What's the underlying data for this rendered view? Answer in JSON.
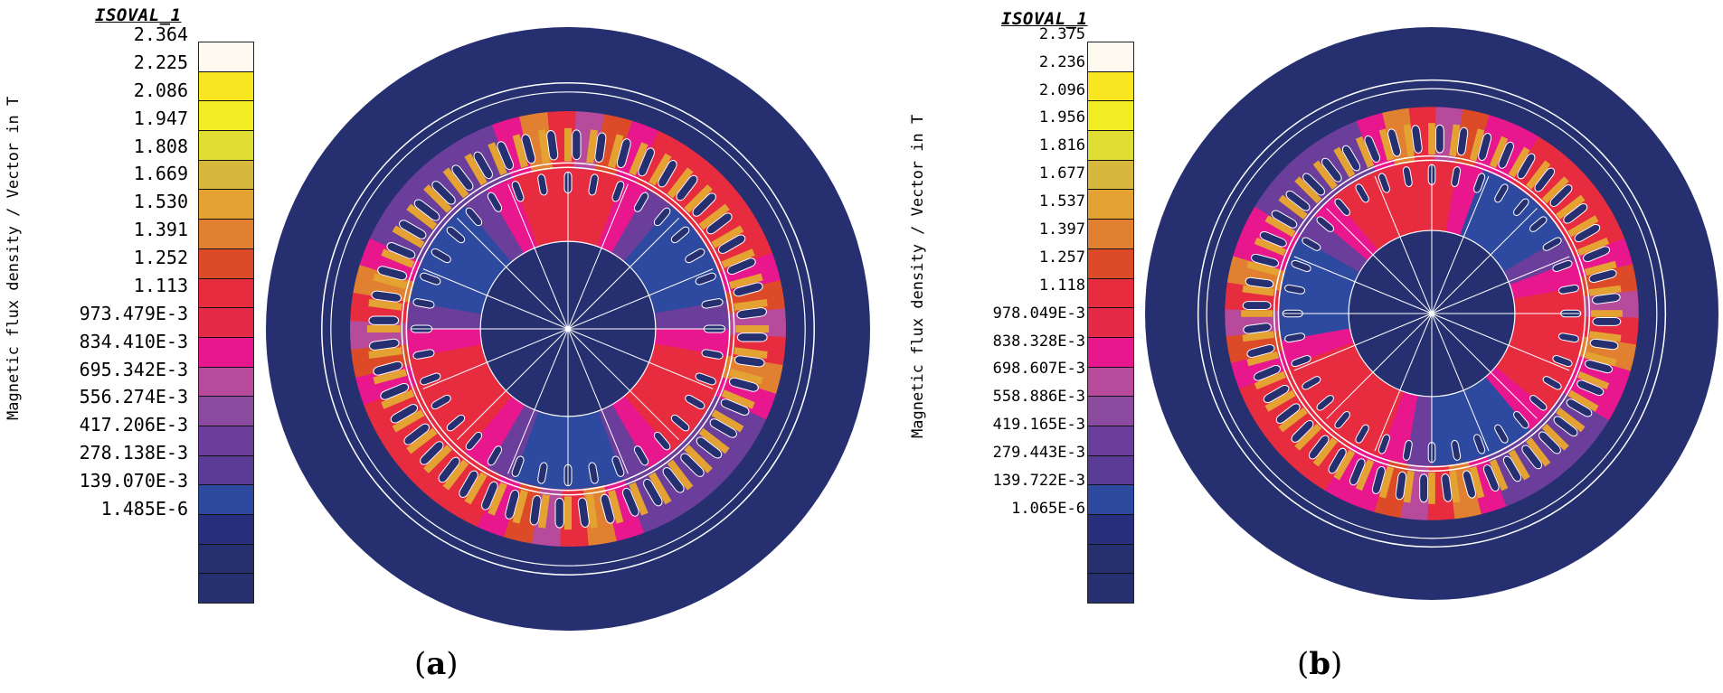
{
  "legend_title": "ISOVAL_1",
  "axis_label": "Magnetic flux density / Vector in T",
  "colors": [
    "#fefaf0",
    "#f7e620",
    "#f2ec22",
    "#e0dd34",
    "#d8b83c",
    "#e4a232",
    "#e18030",
    "#dd4a28",
    "#e82c40",
    "#e42a46",
    "#e8178e",
    "#b84a9c",
    "#8a4a9e",
    "#6a3e9a",
    "#5a3c96",
    "#2e4aa0",
    "#28307e",
    "#26306e",
    "#263070"
  ],
  "panels": [
    {
      "id": "a",
      "caption_letter": "a",
      "ticks": [
        "2.364",
        "2.225",
        "2.086",
        "1.947",
        "1.808",
        "1.669",
        "1.530",
        "1.391",
        "1.252",
        "1.113",
        "973.479E-3",
        "834.410E-3",
        "695.342E-3",
        "556.274E-3",
        "417.206E-3",
        "278.138E-3",
        "139.070E-3",
        "1.485E-6"
      ]
    },
    {
      "id": "b",
      "caption_letter": "b",
      "ticks": [
        "2.375",
        "2.236",
        "2.096",
        "1.956",
        "1.816",
        "1.677",
        "1.537",
        "1.397",
        "1.257",
        "1.118",
        "978.049E-3",
        "838.328E-3",
        "698.607E-3",
        "558.886E-3",
        "419.165E-3",
        "279.443E-3",
        "139.722E-3",
        "1.065E-6"
      ]
    }
  ]
}
